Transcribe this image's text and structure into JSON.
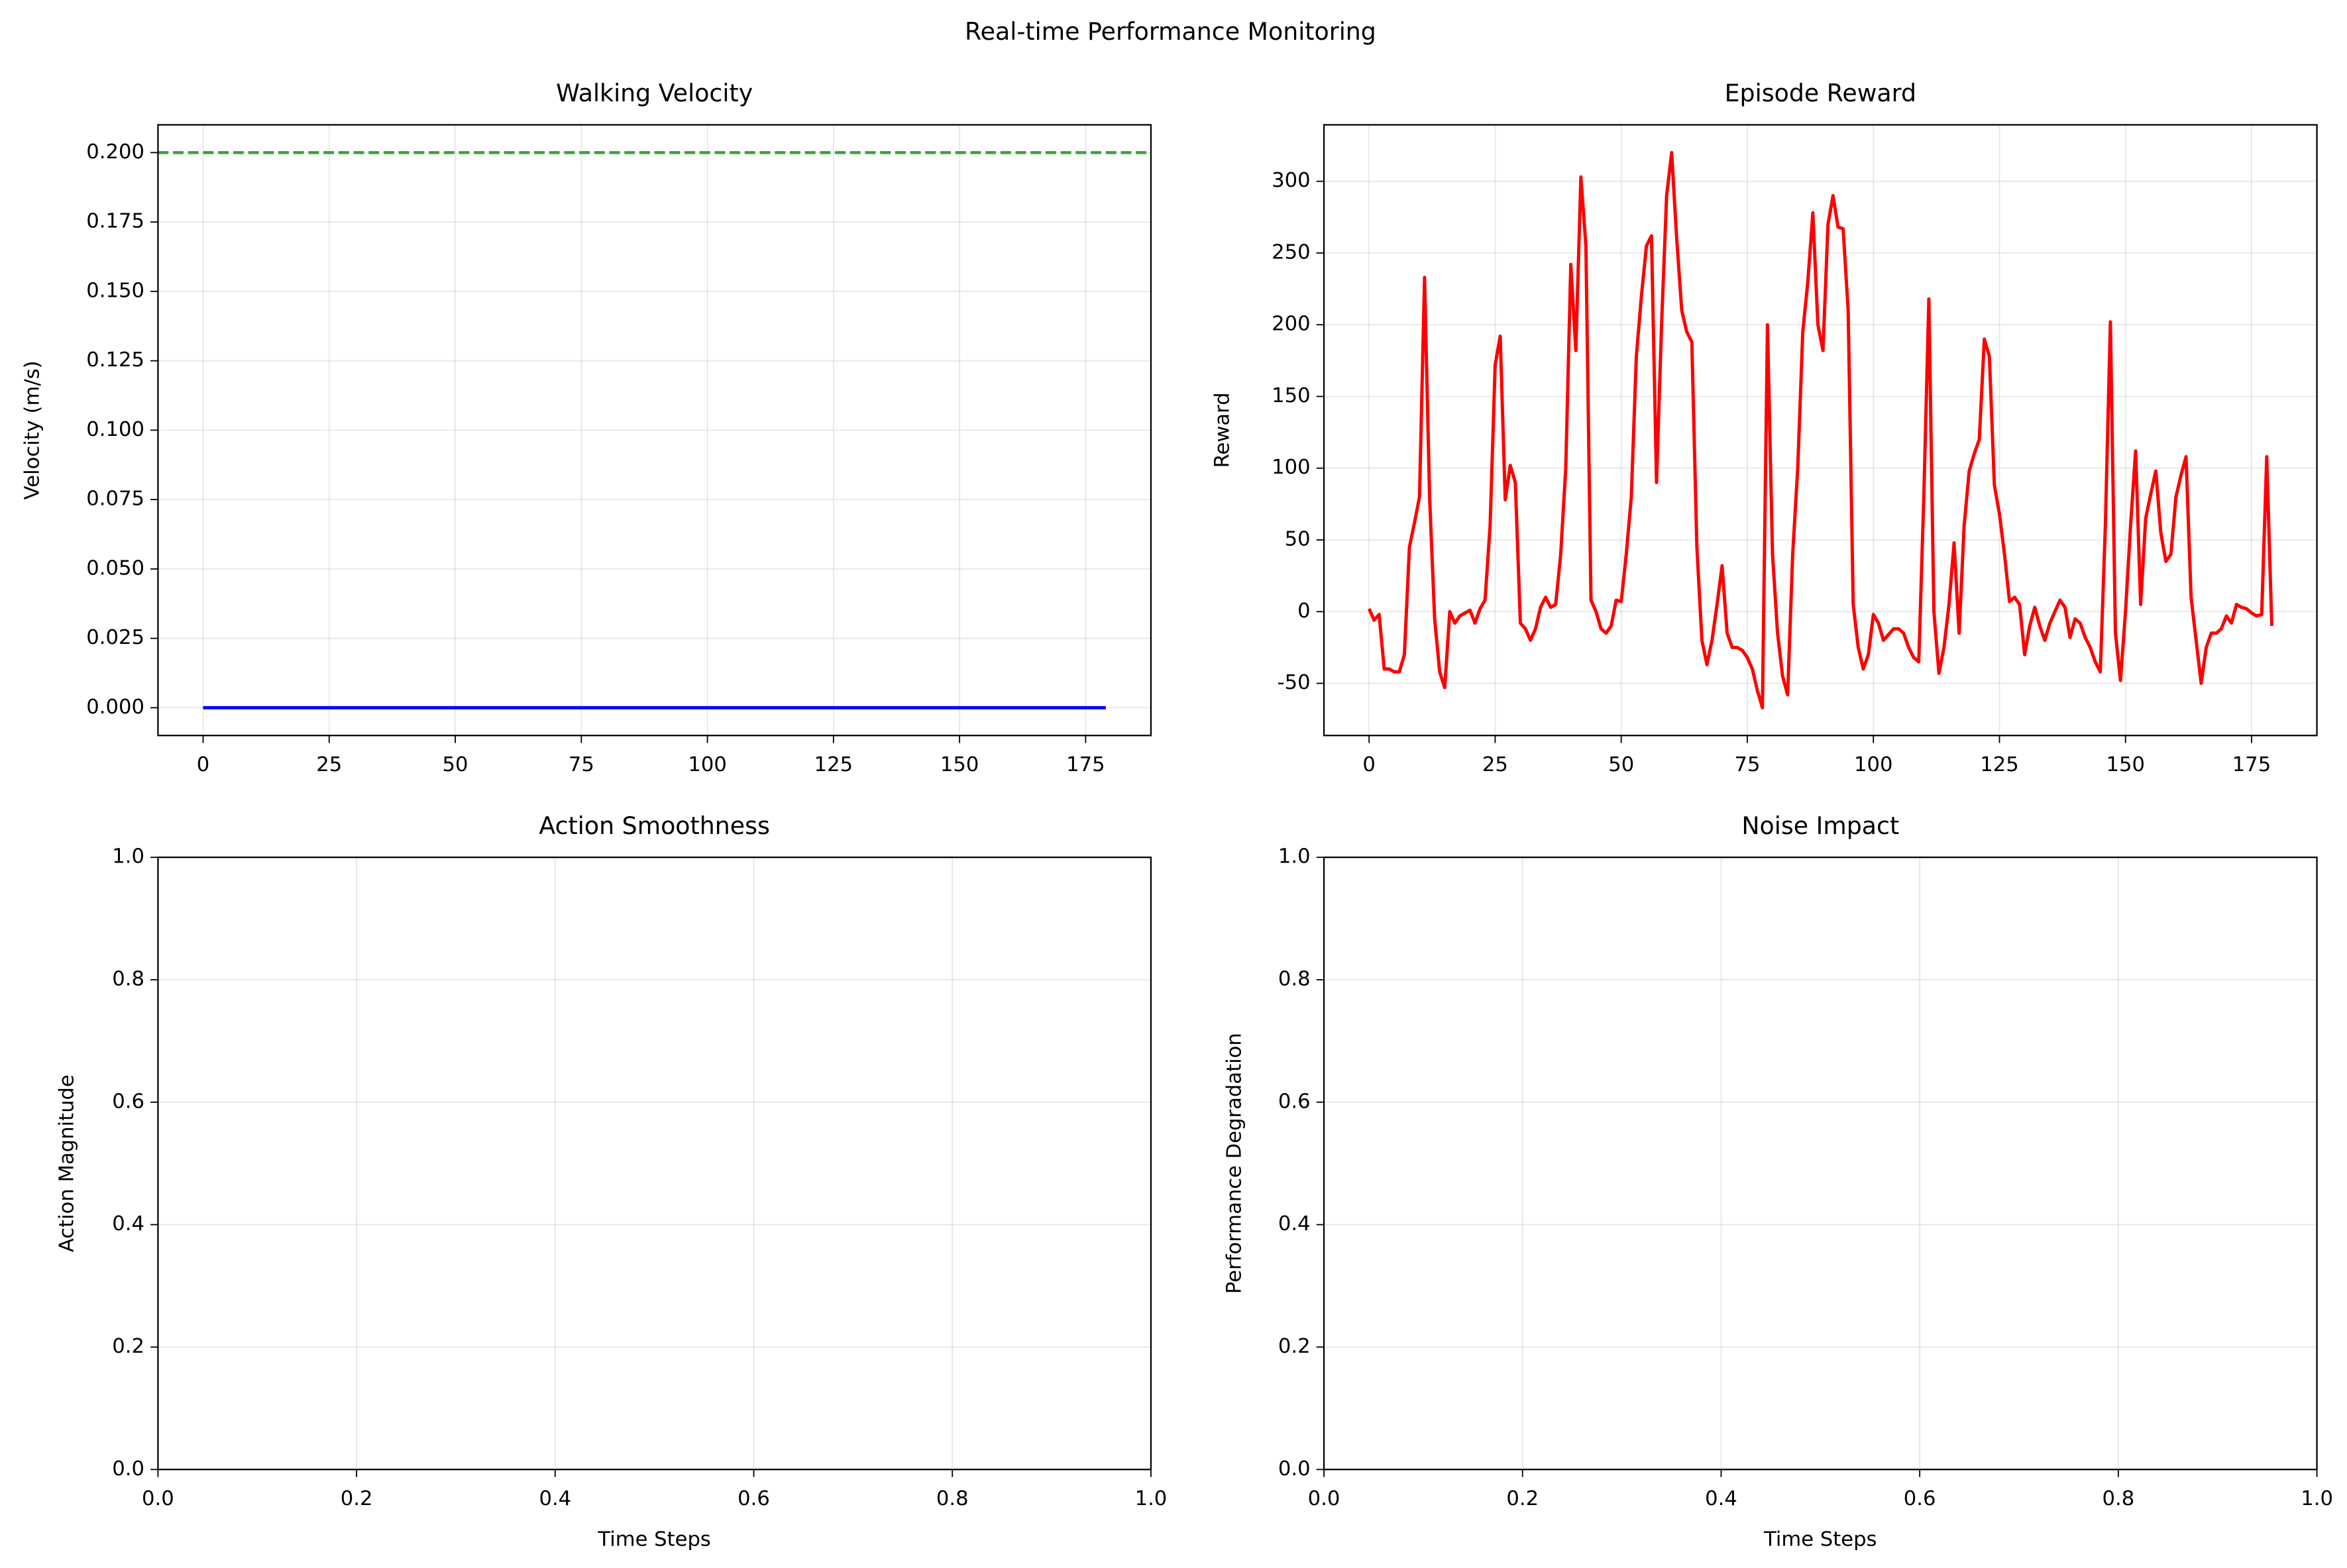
{
  "title": "Real-time Performance Monitoring",
  "chart_data": [
    {
      "type": "line",
      "title": "Walking Velocity",
      "ylabel": "Velocity (m/s)",
      "color": "#0000ff",
      "grid": true,
      "x": [
        0,
        1,
        2,
        3,
        4,
        5,
        6,
        7,
        8,
        9,
        10,
        11,
        12,
        13,
        14,
        15,
        16,
        17,
        18,
        19,
        20,
        21,
        22,
        23,
        24,
        25,
        26,
        27,
        28,
        29,
        30,
        31,
        32,
        33,
        34,
        35,
        36,
        37,
        38,
        39,
        40,
        41,
        42,
        43,
        44,
        45,
        46,
        47,
        48,
        49,
        50,
        51,
        52,
        53,
        54,
        55,
        56,
        57,
        58,
        59,
        60,
        61,
        62,
        63,
        64,
        65,
        66,
        67,
        68,
        69,
        70,
        71,
        72,
        73,
        74,
        75,
        76,
        77,
        78,
        79,
        80,
        81,
        82,
        83,
        84,
        85,
        86,
        87,
        88,
        89,
        90,
        91,
        92,
        93,
        94,
        95,
        96,
        97,
        98,
        99,
        100,
        101,
        102,
        103,
        104,
        105,
        106,
        107,
        108,
        109,
        110,
        111,
        112,
        113,
        114,
        115,
        116,
        117,
        118,
        119,
        120,
        121,
        122,
        123,
        124,
        125,
        126,
        127,
        128,
        129,
        130,
        131,
        132,
        133,
        134,
        135,
        136,
        137,
        138,
        139,
        140,
        141,
        142,
        143,
        144,
        145,
        146,
        147,
        148,
        149,
        150,
        151,
        152,
        153,
        154,
        155,
        156,
        157,
        158,
        159,
        160,
        161,
        162,
        163,
        164,
        165,
        166,
        167,
        168,
        169,
        170,
        171,
        172,
        173,
        174,
        175,
        176,
        177,
        178,
        179
      ],
      "values": [
        0,
        0,
        0,
        0,
        0,
        0,
        0,
        0,
        0,
        0,
        0,
        0,
        0,
        0,
        0,
        0,
        0,
        0,
        0,
        0,
        0,
        0,
        0,
        0,
        0,
        0,
        0,
        0,
        0,
        0,
        0,
        0,
        0,
        0,
        0,
        0,
        0,
        0,
        0,
        0,
        0,
        0,
        0,
        0,
        0,
        0,
        0,
        0,
        0,
        0,
        0,
        0,
        0,
        0,
        0,
        0,
        0,
        0,
        0,
        0,
        0,
        0,
        0,
        0,
        0,
        0,
        0,
        0,
        0,
        0,
        0,
        0,
        0,
        0,
        0,
        0,
        0,
        0,
        0,
        0,
        0,
        0,
        0,
        0,
        0,
        0,
        0,
        0,
        0,
        0,
        0,
        0,
        0,
        0,
        0,
        0,
        0,
        0,
        0,
        0,
        0,
        0,
        0,
        0,
        0,
        0,
        0,
        0,
        0,
        0,
        0,
        0,
        0,
        0,
        0,
        0,
        0,
        0,
        0,
        0,
        0,
        0,
        0,
        0,
        0,
        0,
        0,
        0,
        0,
        0,
        0,
        0,
        0,
        0,
        0,
        0,
        0,
        0,
        0,
        0,
        0,
        0,
        0,
        0,
        0,
        0,
        0,
        0,
        0,
        0,
        0,
        0,
        0,
        0,
        0,
        0,
        0,
        0,
        0,
        0,
        0,
        0,
        0,
        0,
        0,
        0,
        0,
        0,
        0,
        0,
        0,
        0,
        0,
        0,
        0,
        0,
        0,
        0,
        0,
        0
      ],
      "reference_line": {
        "value": 0.2,
        "color": "#3da03d",
        "dashed": true
      },
      "xlim": [
        -8.95,
        187.95
      ],
      "xticks": [
        0,
        25,
        50,
        75,
        100,
        125,
        150,
        175
      ],
      "ylim": [
        -0.01,
        0.21
      ],
      "yticks": [
        {
          "value": 0,
          "label": "0.000"
        },
        {
          "value": 0.025,
          "label": "0.025"
        },
        {
          "value": 0.05,
          "label": "0.050"
        },
        {
          "value": 0.075,
          "label": "0.075"
        },
        {
          "value": 0.1,
          "label": "0.100"
        },
        {
          "value": 0.125,
          "label": "0.125"
        },
        {
          "value": 0.15,
          "label": "0.150"
        },
        {
          "value": 0.175,
          "label": "0.175"
        },
        {
          "value": 0.2,
          "label": "0.200"
        }
      ]
    },
    {
      "type": "line",
      "title": "Episode Reward",
      "ylabel": "Reward",
      "color": "#ff0000",
      "grid": true,
      "x": [
        0,
        1,
        2,
        3,
        4,
        5,
        6,
        7,
        8,
        9,
        10,
        11,
        12,
        13,
        14,
        15,
        16,
        17,
        18,
        19,
        20,
        21,
        22,
        23,
        24,
        25,
        26,
        27,
        28,
        29,
        30,
        31,
        32,
        33,
        34,
        35,
        36,
        37,
        38,
        39,
        40,
        41,
        42,
        43,
        44,
        45,
        46,
        47,
        48,
        49,
        50,
        51,
        52,
        53,
        54,
        55,
        56,
        57,
        58,
        59,
        60,
        61,
        62,
        63,
        64,
        65,
        66,
        67,
        68,
        69,
        70,
        71,
        72,
        73,
        74,
        75,
        76,
        77,
        78,
        79,
        80,
        81,
        82,
        83,
        84,
        85,
        86,
        87,
        88,
        89,
        90,
        91,
        92,
        93,
        94,
        95,
        96,
        97,
        98,
        99,
        100,
        101,
        102,
        103,
        104,
        105,
        106,
        107,
        108,
        109,
        110,
        111,
        112,
        113,
        114,
        115,
        116,
        117,
        118,
        119,
        120,
        121,
        122,
        123,
        124,
        125,
        126,
        127,
        128,
        129,
        130,
        131,
        132,
        133,
        134,
        135,
        136,
        137,
        138,
        139,
        140,
        141,
        142,
        143,
        144,
        145,
        146,
        147,
        148,
        149,
        150,
        151,
        152,
        153,
        154,
        155,
        156,
        157,
        158,
        159,
        160,
        161,
        162,
        163,
        164,
        165,
        166,
        167,
        168,
        169,
        170,
        171,
        172,
        173,
        174,
        175,
        176,
        177,
        178,
        179
      ],
      "values": [
        2,
        -6,
        -2,
        -40,
        -40,
        -42,
        -42,
        -30,
        45,
        62,
        80,
        233,
        80,
        -5,
        -42,
        -53,
        0,
        -8,
        -3,
        -1,
        1,
        -8,
        2,
        8,
        60,
        172,
        192,
        78,
        102,
        90,
        -8,
        -12,
        -20,
        -12,
        3,
        10,
        3,
        5,
        40,
        100,
        242,
        182,
        303,
        255,
        8,
        0,
        -12,
        -15,
        -10,
        8,
        7,
        40,
        80,
        178,
        220,
        255,
        262,
        90,
        200,
        290,
        320,
        260,
        210,
        195,
        188,
        45,
        -20,
        -37,
        -20,
        5,
        32,
        -15,
        -25,
        -25,
        -27,
        -32,
        -40,
        -55,
        -67,
        200,
        40,
        -15,
        -45,
        -58,
        40,
        100,
        195,
        230,
        278,
        200,
        182,
        270,
        290,
        268,
        267,
        210,
        5,
        -25,
        -40,
        -30,
        -2,
        -8,
        -20,
        -16,
        -12,
        -12,
        -15,
        -25,
        -32,
        -35,
        80,
        218,
        0,
        -43,
        -25,
        5,
        48,
        -15,
        60,
        98,
        110,
        120,
        190,
        178,
        88,
        68,
        40,
        7,
        10,
        5,
        -30,
        -10,
        3,
        -10,
        -20,
        -8,
        0,
        8,
        3,
        -18,
        -5,
        -8,
        -18,
        -25,
        -35,
        -42,
        60,
        202,
        -15,
        -48,
        0,
        60,
        112,
        5,
        65,
        82,
        98,
        55,
        35,
        40,
        80,
        95,
        108,
        10,
        -20,
        -50,
        -25,
        -15,
        -15,
        -12,
        -3,
        -8,
        5,
        3,
        2,
        -1,
        -3,
        -2,
        108,
        -10
      ],
      "xlim": [
        -8.95,
        187.95
      ],
      "xticks": [
        0,
        25,
        50,
        75,
        100,
        125,
        150,
        175
      ],
      "ylim": [
        -86.35,
        339.35
      ],
      "yticks": [
        -50,
        0,
        50,
        100,
        150,
        200,
        250,
        300
      ]
    },
    {
      "type": "empty",
      "title": "Action Smoothness",
      "xlabel": "Time Steps",
      "ylabel": "Action Magnitude",
      "grid": true,
      "xlim": [
        0,
        1
      ],
      "xticks": [
        {
          "value": 0,
          "label": "0.0"
        },
        {
          "value": 0.2,
          "label": "0.2"
        },
        {
          "value": 0.4,
          "label": "0.4"
        },
        {
          "value": 0.6,
          "label": "0.6"
        },
        {
          "value": 0.8,
          "label": "0.8"
        },
        {
          "value": 1,
          "label": "1.0"
        }
      ],
      "ylim": [
        0,
        1
      ],
      "yticks": [
        {
          "value": 0,
          "label": "0.0"
        },
        {
          "value": 0.2,
          "label": "0.2"
        },
        {
          "value": 0.4,
          "label": "0.4"
        },
        {
          "value": 0.6,
          "label": "0.6"
        },
        {
          "value": 0.8,
          "label": "0.8"
        },
        {
          "value": 1,
          "label": "1.0"
        }
      ]
    },
    {
      "type": "empty",
      "title": "Noise Impact",
      "xlabel": "Time Steps",
      "ylabel": "Performance Degradation",
      "grid": true,
      "xlim": [
        0,
        1
      ],
      "xticks": [
        {
          "value": 0,
          "label": "0.0"
        },
        {
          "value": 0.2,
          "label": "0.2"
        },
        {
          "value": 0.4,
          "label": "0.4"
        },
        {
          "value": 0.6,
          "label": "0.6"
        },
        {
          "value": 0.8,
          "label": "0.8"
        },
        {
          "value": 1,
          "label": "1.0"
        }
      ],
      "ylim": [
        0,
        1
      ],
      "yticks": [
        {
          "value": 0,
          "label": "0.0"
        },
        {
          "value": 0.2,
          "label": "0.2"
        },
        {
          "value": 0.4,
          "label": "0.4"
        },
        {
          "value": 0.6,
          "label": "0.6"
        },
        {
          "value": 0.8,
          "label": "0.8"
        },
        {
          "value": 1,
          "label": "1.0"
        }
      ]
    }
  ]
}
